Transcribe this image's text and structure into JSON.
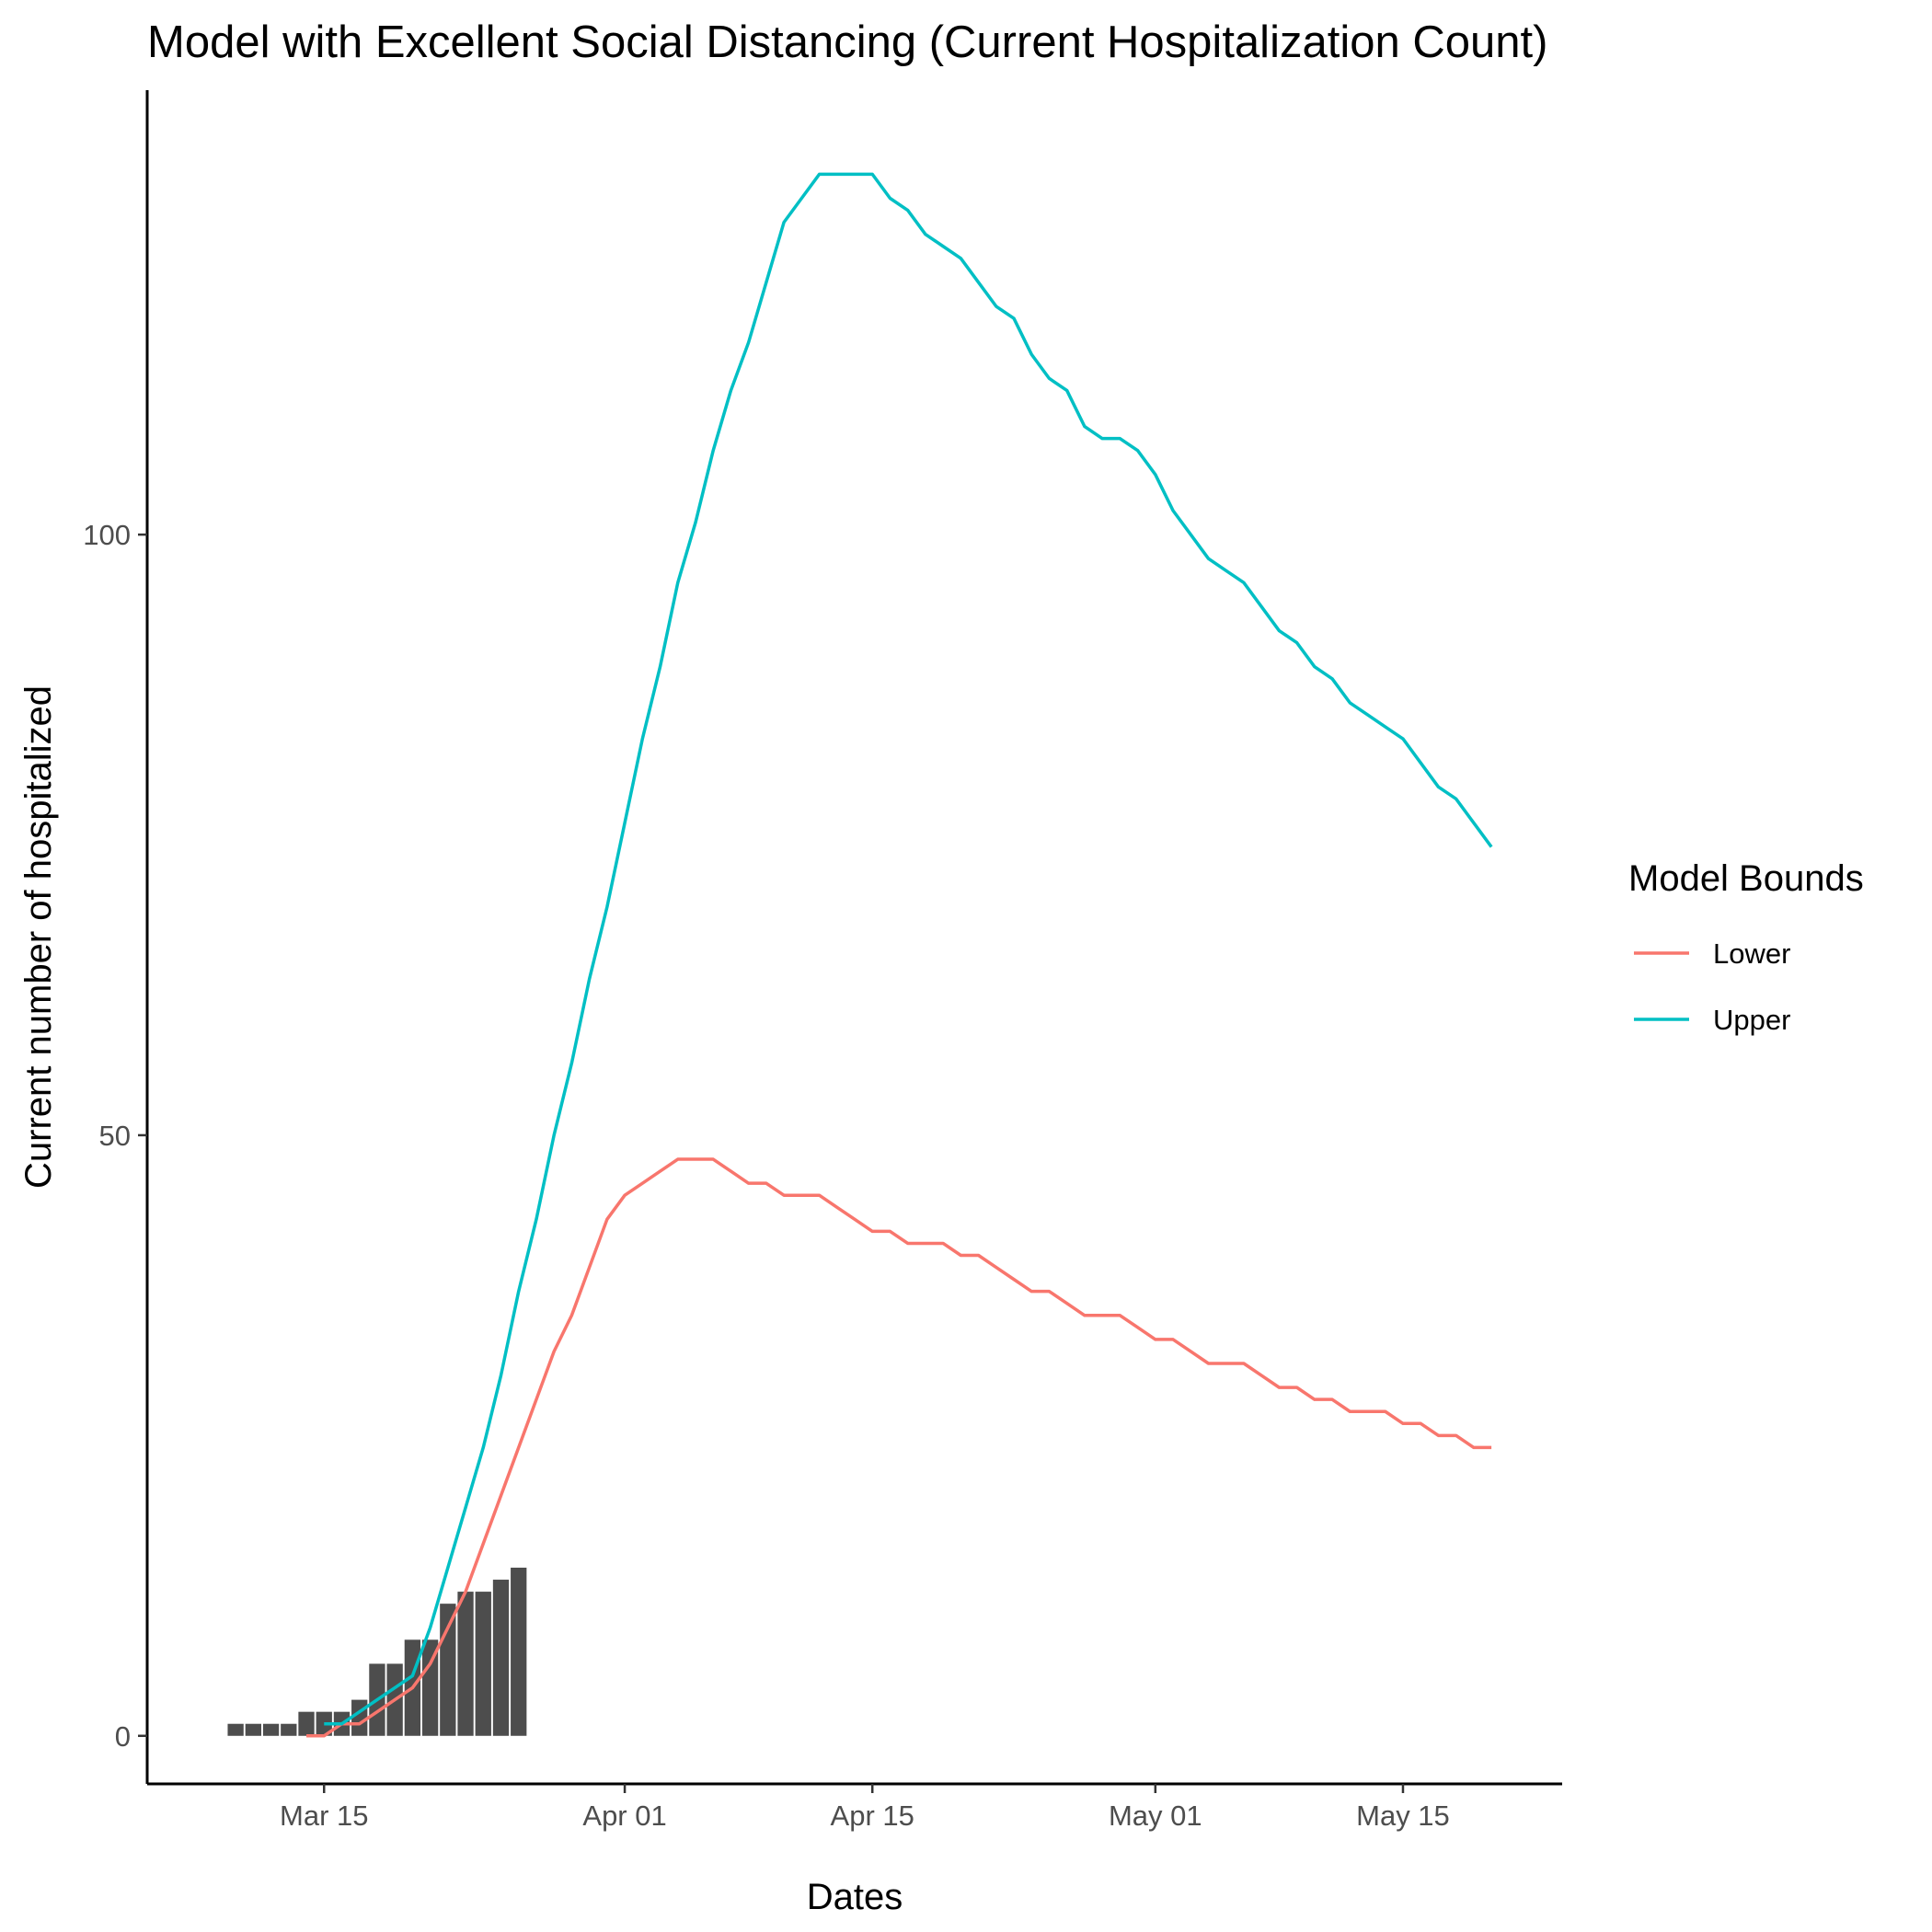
{
  "chart_data": {
    "type": "bar+line",
    "title": "Model with Excellent Social Distancing (Current Hospitalization Count)",
    "xlabel": "Dates",
    "ylabel": "Current number of hospitalized",
    "xlim": [
      "2020-03-05",
      "2020-05-24"
    ],
    "ylim": [
      -4,
      137
    ],
    "x_ticks": [
      {
        "date": "2020-03-15",
        "label": "Mar 15"
      },
      {
        "date": "2020-04-01",
        "label": "Apr 01"
      },
      {
        "date": "2020-04-15",
        "label": "Apr 15"
      },
      {
        "date": "2020-05-01",
        "label": "May 01"
      },
      {
        "date": "2020-05-15",
        "label": "May 15"
      }
    ],
    "y_ticks": [
      {
        "value": 0,
        "label": "0"
      },
      {
        "value": 50,
        "label": "50"
      },
      {
        "value": 100,
        "label": "100"
      }
    ],
    "grid": false,
    "legend": {
      "title": "Model Bounds",
      "position": "right",
      "entries": [
        {
          "label": "Lower",
          "color": "#F8766D"
        },
        {
          "label": "Upper",
          "color": "#00BFC4"
        }
      ]
    },
    "bars": {
      "color": "#4D4D4D",
      "points": [
        {
          "x": "2020-03-10",
          "y": 1
        },
        {
          "x": "2020-03-11",
          "y": 1
        },
        {
          "x": "2020-03-12",
          "y": 1
        },
        {
          "x": "2020-03-13",
          "y": 1
        },
        {
          "x": "2020-03-14",
          "y": 2
        },
        {
          "x": "2020-03-15",
          "y": 2
        },
        {
          "x": "2020-03-16",
          "y": 2
        },
        {
          "x": "2020-03-17",
          "y": 3
        },
        {
          "x": "2020-03-18",
          "y": 6
        },
        {
          "x": "2020-03-19",
          "y": 6
        },
        {
          "x": "2020-03-20",
          "y": 8
        },
        {
          "x": "2020-03-21",
          "y": 8
        },
        {
          "x": "2020-03-22",
          "y": 11
        },
        {
          "x": "2020-03-23",
          "y": 12
        },
        {
          "x": "2020-03-24",
          "y": 12
        },
        {
          "x": "2020-03-25",
          "y": 13
        },
        {
          "x": "2020-03-26",
          "y": 14
        }
      ]
    },
    "series": [
      {
        "name": "Lower",
        "color": "#F8766D",
        "points": [
          {
            "x": "2020-03-14",
            "y": 0
          },
          {
            "x": "2020-03-15",
            "y": 0
          },
          {
            "x": "2020-03-16",
            "y": 1
          },
          {
            "x": "2020-03-17",
            "y": 1
          },
          {
            "x": "2020-03-18",
            "y": 2
          },
          {
            "x": "2020-03-19",
            "y": 3
          },
          {
            "x": "2020-03-20",
            "y": 4
          },
          {
            "x": "2020-03-21",
            "y": 6
          },
          {
            "x": "2020-03-22",
            "y": 9
          },
          {
            "x": "2020-03-23",
            "y": 12
          },
          {
            "x": "2020-03-24",
            "y": 16
          },
          {
            "x": "2020-03-25",
            "y": 20
          },
          {
            "x": "2020-03-26",
            "y": 24
          },
          {
            "x": "2020-03-27",
            "y": 28
          },
          {
            "x": "2020-03-28",
            "y": 32
          },
          {
            "x": "2020-03-29",
            "y": 35
          },
          {
            "x": "2020-03-30",
            "y": 39
          },
          {
            "x": "2020-03-31",
            "y": 43
          },
          {
            "x": "2020-04-01",
            "y": 45
          },
          {
            "x": "2020-04-02",
            "y": 46
          },
          {
            "x": "2020-04-03",
            "y": 47
          },
          {
            "x": "2020-04-04",
            "y": 48
          },
          {
            "x": "2020-04-05",
            "y": 48
          },
          {
            "x": "2020-04-06",
            "y": 48
          },
          {
            "x": "2020-04-07",
            "y": 47
          },
          {
            "x": "2020-04-08",
            "y": 46
          },
          {
            "x": "2020-04-09",
            "y": 46
          },
          {
            "x": "2020-04-10",
            "y": 45
          },
          {
            "x": "2020-04-11",
            "y": 45
          },
          {
            "x": "2020-04-12",
            "y": 45
          },
          {
            "x": "2020-04-13",
            "y": 44
          },
          {
            "x": "2020-04-14",
            "y": 43
          },
          {
            "x": "2020-04-15",
            "y": 42
          },
          {
            "x": "2020-04-16",
            "y": 42
          },
          {
            "x": "2020-04-17",
            "y": 41
          },
          {
            "x": "2020-04-18",
            "y": 41
          },
          {
            "x": "2020-04-19",
            "y": 41
          },
          {
            "x": "2020-04-20",
            "y": 40
          },
          {
            "x": "2020-04-21",
            "y": 40
          },
          {
            "x": "2020-04-22",
            "y": 39
          },
          {
            "x": "2020-04-23",
            "y": 38
          },
          {
            "x": "2020-04-24",
            "y": 37
          },
          {
            "x": "2020-04-25",
            "y": 37
          },
          {
            "x": "2020-04-26",
            "y": 36
          },
          {
            "x": "2020-04-27",
            "y": 35
          },
          {
            "x": "2020-04-28",
            "y": 35
          },
          {
            "x": "2020-04-29",
            "y": 35
          },
          {
            "x": "2020-04-30",
            "y": 34
          },
          {
            "x": "2020-05-01",
            "y": 33
          },
          {
            "x": "2020-05-02",
            "y": 33
          },
          {
            "x": "2020-05-03",
            "y": 32
          },
          {
            "x": "2020-05-04",
            "y": 31
          },
          {
            "x": "2020-05-05",
            "y": 31
          },
          {
            "x": "2020-05-06",
            "y": 31
          },
          {
            "x": "2020-05-07",
            "y": 30
          },
          {
            "x": "2020-05-08",
            "y": 29
          },
          {
            "x": "2020-05-09",
            "y": 29
          },
          {
            "x": "2020-05-10",
            "y": 28
          },
          {
            "x": "2020-05-11",
            "y": 28
          },
          {
            "x": "2020-05-12",
            "y": 27
          },
          {
            "x": "2020-05-13",
            "y": 27
          },
          {
            "x": "2020-05-14",
            "y": 27
          },
          {
            "x": "2020-05-15",
            "y": 26
          },
          {
            "x": "2020-05-16",
            "y": 26
          },
          {
            "x": "2020-05-17",
            "y": 25
          },
          {
            "x": "2020-05-18",
            "y": 25
          },
          {
            "x": "2020-05-19",
            "y": 24
          },
          {
            "x": "2020-05-20",
            "y": 24
          }
        ]
      },
      {
        "name": "Upper",
        "color": "#00BFC4",
        "points": [
          {
            "x": "2020-03-15",
            "y": 1
          },
          {
            "x": "2020-03-16",
            "y": 1
          },
          {
            "x": "2020-03-17",
            "y": 2
          },
          {
            "x": "2020-03-18",
            "y": 3
          },
          {
            "x": "2020-03-19",
            "y": 4
          },
          {
            "x": "2020-03-20",
            "y": 5
          },
          {
            "x": "2020-03-21",
            "y": 9
          },
          {
            "x": "2020-03-22",
            "y": 14
          },
          {
            "x": "2020-03-23",
            "y": 19
          },
          {
            "x": "2020-03-24",
            "y": 24
          },
          {
            "x": "2020-03-25",
            "y": 30
          },
          {
            "x": "2020-03-26",
            "y": 37
          },
          {
            "x": "2020-03-27",
            "y": 43
          },
          {
            "x": "2020-03-28",
            "y": 50
          },
          {
            "x": "2020-03-29",
            "y": 56
          },
          {
            "x": "2020-03-30",
            "y": 63
          },
          {
            "x": "2020-03-31",
            "y": 69
          },
          {
            "x": "2020-04-01",
            "y": 76
          },
          {
            "x": "2020-04-02",
            "y": 83
          },
          {
            "x": "2020-04-03",
            "y": 89
          },
          {
            "x": "2020-04-04",
            "y": 96
          },
          {
            "x": "2020-04-05",
            "y": 101
          },
          {
            "x": "2020-04-06",
            "y": 107
          },
          {
            "x": "2020-04-07",
            "y": 112
          },
          {
            "x": "2020-04-08",
            "y": 116
          },
          {
            "x": "2020-04-09",
            "y": 121
          },
          {
            "x": "2020-04-10",
            "y": 126
          },
          {
            "x": "2020-04-11",
            "y": 128
          },
          {
            "x": "2020-04-12",
            "y": 130
          },
          {
            "x": "2020-04-13",
            "y": 130
          },
          {
            "x": "2020-04-14",
            "y": 130
          },
          {
            "x": "2020-04-15",
            "y": 130
          },
          {
            "x": "2020-04-16",
            "y": 128
          },
          {
            "x": "2020-04-17",
            "y": 127
          },
          {
            "x": "2020-04-18",
            "y": 125
          },
          {
            "x": "2020-04-19",
            "y": 124
          },
          {
            "x": "2020-04-20",
            "y": 123
          },
          {
            "x": "2020-04-21",
            "y": 121
          },
          {
            "x": "2020-04-22",
            "y": 119
          },
          {
            "x": "2020-04-23",
            "y": 118
          },
          {
            "x": "2020-04-24",
            "y": 115
          },
          {
            "x": "2020-04-25",
            "y": 113
          },
          {
            "x": "2020-04-26",
            "y": 112
          },
          {
            "x": "2020-04-27",
            "y": 109
          },
          {
            "x": "2020-04-28",
            "y": 108
          },
          {
            "x": "2020-04-29",
            "y": 108
          },
          {
            "x": "2020-04-30",
            "y": 107
          },
          {
            "x": "2020-05-01",
            "y": 105
          },
          {
            "x": "2020-05-02",
            "y": 102
          },
          {
            "x": "2020-05-03",
            "y": 100
          },
          {
            "x": "2020-05-04",
            "y": 98
          },
          {
            "x": "2020-05-05",
            "y": 97
          },
          {
            "x": "2020-05-06",
            "y": 96
          },
          {
            "x": "2020-05-07",
            "y": 94
          },
          {
            "x": "2020-05-08",
            "y": 92
          },
          {
            "x": "2020-05-09",
            "y": 91
          },
          {
            "x": "2020-05-10",
            "y": 89
          },
          {
            "x": "2020-05-11",
            "y": 88
          },
          {
            "x": "2020-05-12",
            "y": 86
          },
          {
            "x": "2020-05-13",
            "y": 85
          },
          {
            "x": "2020-05-14",
            "y": 84
          },
          {
            "x": "2020-05-15",
            "y": 83
          },
          {
            "x": "2020-05-16",
            "y": 81
          },
          {
            "x": "2020-05-17",
            "y": 79
          },
          {
            "x": "2020-05-18",
            "y": 78
          },
          {
            "x": "2020-05-19",
            "y": 76
          },
          {
            "x": "2020-05-20",
            "y": 74
          }
        ]
      }
    ]
  }
}
